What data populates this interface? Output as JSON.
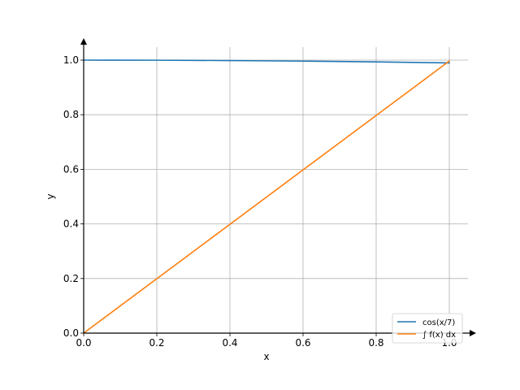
{
  "chart_data": {
    "type": "line",
    "title": "",
    "xlabel": "x",
    "ylabel": "y",
    "xlim": [
      0,
      1.05
    ],
    "ylim": [
      0,
      1.05
    ],
    "xticks": [
      0.0,
      0.2,
      0.4,
      0.6,
      0.8,
      1.0
    ],
    "xtick_labels": [
      "0.0",
      "0.2",
      "0.4",
      "0.6",
      "0.8",
      "1.0"
    ],
    "yticks": [
      0.0,
      0.2,
      0.4,
      0.6,
      0.8,
      1.0
    ],
    "ytick_labels": [
      "0.0",
      "0.2",
      "0.4",
      "0.6",
      "0.8",
      "1.0"
    ],
    "grid": true,
    "legend_position": "bottom-right",
    "series": [
      {
        "name": "cos(x/7)",
        "color": "#1f77b4",
        "x": [
          0.0,
          0.1,
          0.2,
          0.3,
          0.4,
          0.5,
          0.6,
          0.7,
          0.8,
          0.9,
          1.0
        ],
        "y": [
          1.0,
          0.9999,
          0.9996,
          0.9991,
          0.9984,
          0.9974,
          0.9963,
          0.995,
          0.9935,
          0.9917,
          0.9898
        ]
      },
      {
        "name": "∫ f(x) dx",
        "color": "#ff7f0e",
        "x": [
          0.0,
          1.0
        ],
        "y": [
          0.0,
          0.9966
        ]
      }
    ]
  }
}
